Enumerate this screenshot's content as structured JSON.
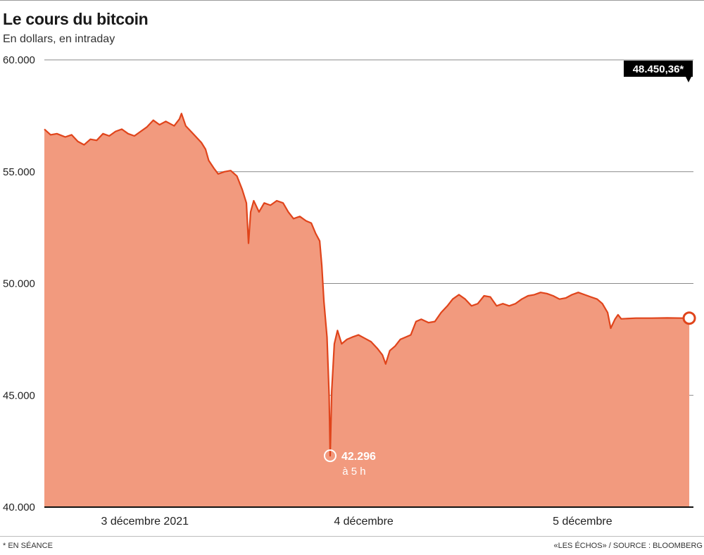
{
  "header": {
    "title": "Le cours du bitcoin",
    "subtitle": "En dollars, en intraday"
  },
  "footer": {
    "note": "* EN SÉANCE",
    "source": "«LES ÉCHOS» / SOURCE : BLOOMBERG"
  },
  "colors": {
    "line": "#e0441b",
    "fill": "#f29a7e",
    "marker_fill": "#ffffff",
    "callout_bg": "#000000"
  },
  "chart_data": {
    "type": "area",
    "title": "Le cours du bitcoin",
    "subtitle": "En dollars, en intraday",
    "unit": "dollars",
    "ylim": [
      40000,
      60000
    ],
    "y_ticks": [
      40000,
      45000,
      50000,
      55000,
      60000
    ],
    "y_tick_labels": [
      "40.000",
      "45.000",
      "50.000",
      "55.000",
      "60.000"
    ],
    "x_axis": "hours since 3 December 2021 00:00",
    "xlim": [
      0,
      62
    ],
    "x_ticks": [
      {
        "x": 9.6,
        "label": "3 décembre 2021"
      },
      {
        "x": 30.5,
        "label": "4 décembre"
      },
      {
        "x": 51.4,
        "label": "5 décembre"
      }
    ],
    "grid": "horizontal",
    "series": [
      {
        "points": [
          [
            0,
            56900
          ],
          [
            0.6,
            56650
          ],
          [
            1.2,
            56700
          ],
          [
            2.0,
            56550
          ],
          [
            2.6,
            56650
          ],
          [
            3.2,
            56350
          ],
          [
            3.8,
            56200
          ],
          [
            4.4,
            56450
          ],
          [
            5.0,
            56400
          ],
          [
            5.6,
            56700
          ],
          [
            6.2,
            56600
          ],
          [
            6.8,
            56800
          ],
          [
            7.4,
            56900
          ],
          [
            8.0,
            56700
          ],
          [
            8.6,
            56600
          ],
          [
            9.2,
            56800
          ],
          [
            9.8,
            57000
          ],
          [
            10.4,
            57300
          ],
          [
            11.0,
            57100
          ],
          [
            11.6,
            57250
          ],
          [
            12.4,
            57050
          ],
          [
            12.9,
            57350
          ],
          [
            13.1,
            57600
          ],
          [
            13.5,
            57050
          ],
          [
            14.2,
            56700
          ],
          [
            15.0,
            56300
          ],
          [
            15.4,
            56000
          ],
          [
            15.7,
            55500
          ],
          [
            16.2,
            55150
          ],
          [
            16.6,
            54900
          ],
          [
            17.2,
            55000
          ],
          [
            17.8,
            55050
          ],
          [
            18.4,
            54800
          ],
          [
            18.9,
            54200
          ],
          [
            19.3,
            53600
          ],
          [
            19.5,
            51800
          ],
          [
            19.7,
            53200
          ],
          [
            20.0,
            53700
          ],
          [
            20.5,
            53200
          ],
          [
            21.0,
            53600
          ],
          [
            21.6,
            53500
          ],
          [
            22.2,
            53700
          ],
          [
            22.8,
            53600
          ],
          [
            23.3,
            53200
          ],
          [
            23.8,
            52900
          ],
          [
            24.4,
            53000
          ],
          [
            25.0,
            52800
          ],
          [
            25.5,
            52700
          ],
          [
            25.9,
            52250
          ],
          [
            26.3,
            51900
          ],
          [
            26.5,
            50800
          ],
          [
            26.7,
            49200
          ],
          [
            27.0,
            47600
          ],
          [
            27.2,
            45000
          ],
          [
            27.3,
            42296
          ],
          [
            27.45,
            45200
          ],
          [
            27.7,
            47300
          ],
          [
            28.0,
            47900
          ],
          [
            28.4,
            47300
          ],
          [
            28.9,
            47500
          ],
          [
            29.4,
            47600
          ],
          [
            30.0,
            47700
          ],
          [
            30.6,
            47550
          ],
          [
            31.2,
            47400
          ],
          [
            31.8,
            47100
          ],
          [
            32.3,
            46800
          ],
          [
            32.6,
            46400
          ],
          [
            33.0,
            47000
          ],
          [
            33.5,
            47200
          ],
          [
            34.0,
            47500
          ],
          [
            34.5,
            47600
          ],
          [
            35.0,
            47700
          ],
          [
            35.5,
            48300
          ],
          [
            36.0,
            48400
          ],
          [
            36.7,
            48250
          ],
          [
            37.3,
            48300
          ],
          [
            37.9,
            48700
          ],
          [
            38.5,
            49000
          ],
          [
            39.0,
            49300
          ],
          [
            39.6,
            49500
          ],
          [
            40.2,
            49300
          ],
          [
            40.8,
            49000
          ],
          [
            41.4,
            49100
          ],
          [
            42.0,
            49450
          ],
          [
            42.6,
            49400
          ],
          [
            43.2,
            49000
          ],
          [
            43.8,
            49100
          ],
          [
            44.4,
            49000
          ],
          [
            45.0,
            49100
          ],
          [
            45.6,
            49300
          ],
          [
            46.2,
            49450
          ],
          [
            46.8,
            49500
          ],
          [
            47.4,
            49600
          ],
          [
            48.0,
            49550
          ],
          [
            48.6,
            49450
          ],
          [
            49.2,
            49300
          ],
          [
            49.8,
            49350
          ],
          [
            50.4,
            49500
          ],
          [
            51.0,
            49600
          ],
          [
            51.6,
            49500
          ],
          [
            52.2,
            49400
          ],
          [
            52.8,
            49300
          ],
          [
            53.3,
            49100
          ],
          [
            53.8,
            48700
          ],
          [
            54.1,
            48000
          ],
          [
            54.5,
            48400
          ],
          [
            54.8,
            48600
          ],
          [
            55.1,
            48420
          ],
          [
            56.5,
            48450
          ],
          [
            58.0,
            48450
          ],
          [
            59.5,
            48460
          ],
          [
            61.0,
            48450
          ],
          [
            61.6,
            48450.36
          ]
        ]
      }
    ],
    "annotations": {
      "min": {
        "x": 27.3,
        "y": 42296,
        "value_label": "42.296",
        "time_label": "à 5 h"
      },
      "last": {
        "x": 61.6,
        "y": 48450.36,
        "value_label": "48.450,36*"
      }
    }
  }
}
